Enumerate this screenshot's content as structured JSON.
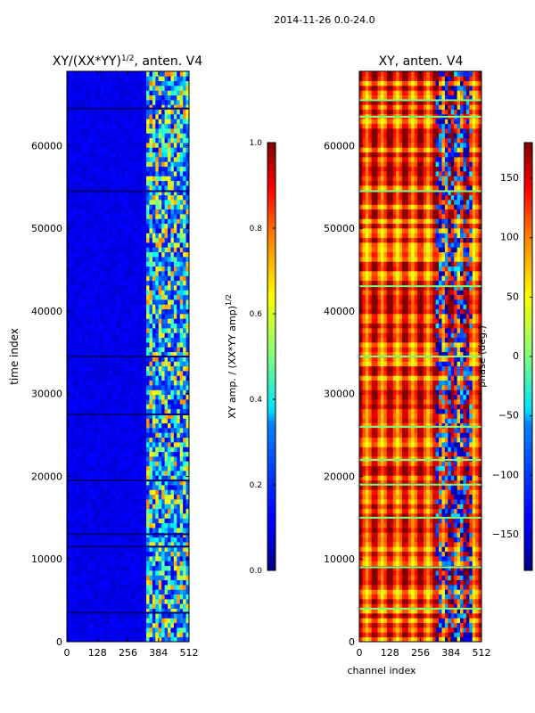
{
  "figure": {
    "suptitle": "2014-11-26 0.0-24.0"
  },
  "chart_data": [
    {
      "type": "heatmap",
      "title": "XY/(XX*YY)^1/2, anten. V4",
      "title_base": "XY/(XX*YY)",
      "title_exp": "1/2",
      "title_tail": ", anten. V4",
      "xlabel": "",
      "ylabel": "time index",
      "xlim": [
        0,
        512
      ],
      "ylim": [
        0,
        69000
      ],
      "x_ticks": [
        0,
        128,
        256,
        384,
        512
      ],
      "y_ticks": [
        0,
        10000,
        20000,
        30000,
        40000,
        50000,
        60000
      ],
      "colormap": "jet",
      "colorbar": {
        "label_base": "XY amp. / (XX*YY amp)",
        "label_exp": "1/2",
        "range": [
          0.0,
          1.0
        ],
        "ticks": [
          "0.0",
          "0.2",
          "0.4",
          "0.6",
          "0.8",
          "1.0"
        ]
      },
      "features": {
        "background_value": 0.08,
        "active_channel_range": [
          330,
          512
        ],
        "active_value_range": [
          0.2,
          0.75
        ],
        "dropout_rows": [
          3500,
          11500,
          13000,
          19500,
          27500,
          34500,
          54500,
          64500
        ]
      }
    },
    {
      "type": "heatmap",
      "title": "XY, anten. V4",
      "xlabel": "channel index",
      "ylabel": "",
      "xlim": [
        0,
        512
      ],
      "ylim": [
        0,
        69000
      ],
      "x_ticks": [
        0,
        128,
        256,
        384,
        512
      ],
      "y_ticks": [
        0,
        10000,
        20000,
        30000,
        40000,
        50000,
        60000
      ],
      "colormap": "jet",
      "colorbar": {
        "label": "phase (deg.)",
        "range": [
          -180,
          180
        ],
        "ticks": [
          "−150",
          "−100",
          "−50",
          "0",
          "50",
          "100",
          "150"
        ]
      },
      "features": {
        "stripe_period_channels": 64,
        "phase_range": [
          60,
          170
        ],
        "disturbed_channel_range": [
          320,
          470
        ],
        "flag_rows": [
          4000,
          9000,
          15000,
          19000,
          22000,
          26000,
          34500,
          43000,
          54500,
          63500,
          65500
        ]
      }
    }
  ],
  "colors": {
    "jet_low": "#00007f",
    "jet_high": "#7f0000",
    "axis": "#000000"
  }
}
